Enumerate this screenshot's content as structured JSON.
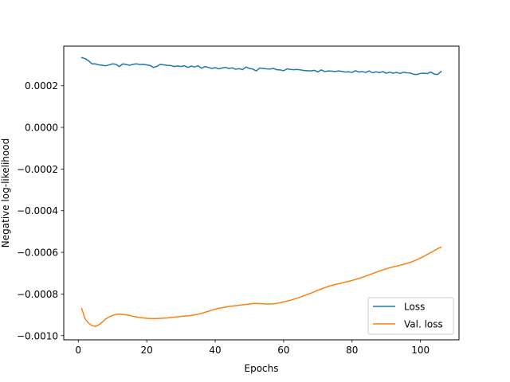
{
  "chart_data": {
    "type": "line",
    "title": "",
    "xlabel": "Epochs",
    "ylabel": "Negative log-likelihood",
    "xlim": [
      -4.25,
      111.25
    ],
    "ylim": [
      -0.00102,
      0.00039
    ],
    "xticks": [
      0,
      20,
      40,
      60,
      80,
      100
    ],
    "xtick_labels": [
      "0",
      "20",
      "40",
      "60",
      "80",
      "100"
    ],
    "yticks": [
      0.0002,
      0.0,
      -0.0002,
      -0.0004,
      -0.0006,
      -0.0008,
      -0.001
    ],
    "ytick_labels": [
      "0.0002",
      "0.0000",
      "−0.0002",
      "−0.0004",
      "−0.0006",
      "−0.0008",
      "−0.0010"
    ],
    "grid": false,
    "legend_position": "lower-right",
    "series": [
      {
        "name": "Loss",
        "color": "#1f77b4",
        "x": [
          1,
          2,
          3,
          4,
          5,
          6,
          7,
          8,
          9,
          10,
          11,
          12,
          13,
          14,
          15,
          16,
          17,
          18,
          19,
          20,
          21,
          22,
          23,
          24,
          25,
          26,
          27,
          28,
          29,
          30,
          31,
          32,
          33,
          34,
          35,
          36,
          37,
          38,
          39,
          40,
          41,
          42,
          43,
          44,
          45,
          46,
          47,
          48,
          49,
          50,
          51,
          52,
          53,
          54,
          55,
          56,
          57,
          58,
          59,
          60,
          61,
          62,
          63,
          64,
          65,
          66,
          67,
          68,
          69,
          70,
          71,
          72,
          73,
          74,
          75,
          76,
          77,
          78,
          79,
          80,
          81,
          82,
          83,
          84,
          85,
          86,
          87,
          88,
          89,
          90,
          91,
          92,
          93,
          94,
          95,
          96,
          97,
          98,
          99,
          100,
          101,
          102,
          103,
          104,
          105,
          106
        ],
        "values": [
          0.000335,
          0.00033,
          0.00032,
          0.000305,
          0.000305,
          0.0003,
          0.000298,
          0.000296,
          0.0003,
          0.000305,
          0.000303,
          0.000292,
          0.000305,
          0.000302,
          0.000298,
          0.000303,
          0.000305,
          0.000302,
          0.000303,
          0.0003,
          0.000297,
          0.000288,
          0.000293,
          0.000303,
          0.0003,
          0.000298,
          0.000297,
          0.000292,
          0.000295,
          0.000292,
          0.000296,
          0.000288,
          0.000294,
          0.00029,
          0.000296,
          0.000284,
          0.000292,
          0.000288,
          0.000283,
          0.000287,
          0.000281,
          0.000285,
          0.000288,
          0.000283,
          0.000286,
          0.000279,
          0.000282,
          0.000277,
          0.00029,
          0.000283,
          0.00028,
          0.000271,
          0.000285,
          0.000283,
          0.000281,
          0.00028,
          0.000283,
          0.000277,
          0.000276,
          0.000272,
          0.000281,
          0.000278,
          0.000277,
          0.000278,
          0.000276,
          0.000273,
          0.000272,
          0.000271,
          0.000274,
          0.000266,
          0.000276,
          0.000268,
          0.000271,
          0.00027,
          0.000268,
          0.000271,
          0.000269,
          0.000266,
          0.000267,
          0.000264,
          0.000272,
          0.000266,
          0.000268,
          0.000264,
          0.000271,
          0.000262,
          0.000267,
          0.000263,
          0.000268,
          0.00026,
          0.000265,
          0.00026,
          0.000264,
          0.000259,
          0.000265,
          0.000262,
          0.000261,
          0.000255,
          0.000254,
          0.000259,
          0.00026,
          0.000258,
          0.000266,
          0.000256,
          0.000254,
          0.000268
        ]
      },
      {
        "name": "Val. loss",
        "color": "#ff7f0e",
        "x": [
          1,
          2,
          3,
          4,
          5,
          6,
          7,
          8,
          9,
          10,
          11,
          12,
          13,
          14,
          15,
          16,
          17,
          18,
          19,
          20,
          21,
          22,
          23,
          24,
          25,
          26,
          27,
          28,
          29,
          30,
          31,
          32,
          33,
          34,
          35,
          36,
          37,
          38,
          39,
          40,
          41,
          42,
          43,
          44,
          45,
          46,
          47,
          48,
          49,
          50,
          51,
          52,
          53,
          54,
          55,
          56,
          57,
          58,
          59,
          60,
          61,
          62,
          63,
          64,
          65,
          66,
          67,
          68,
          69,
          70,
          71,
          72,
          73,
          74,
          75,
          76,
          77,
          78,
          79,
          80,
          81,
          82,
          83,
          84,
          85,
          86,
          87,
          88,
          89,
          90,
          91,
          92,
          93,
          94,
          95,
          96,
          97,
          98,
          99,
          100,
          101,
          102,
          103,
          104,
          105,
          106
        ],
        "values": [
          -0.00087,
          -0.00092,
          -0.00094,
          -0.000952,
          -0.000955,
          -0.000948,
          -0.000935,
          -0.00092,
          -0.00091,
          -0.000903,
          -0.000898,
          -0.000897,
          -0.000898,
          -0.0009,
          -0.000903,
          -0.000907,
          -0.00091,
          -0.000913,
          -0.000915,
          -0.000917,
          -0.000918,
          -0.000918,
          -0.000918,
          -0.000917,
          -0.000916,
          -0.000915,
          -0.000913,
          -0.000911,
          -0.000909,
          -0.000908,
          -0.000906,
          -0.000905,
          -0.000903,
          -0.0009,
          -0.000897,
          -0.000893,
          -0.000888,
          -0.000883,
          -0.000878,
          -0.000873,
          -0.000869,
          -0.000866,
          -0.000863,
          -0.00086,
          -0.000858,
          -0.000856,
          -0.000854,
          -0.000852,
          -0.00085,
          -0.000848,
          -0.000846,
          -0.000845,
          -0.000846,
          -0.000847,
          -0.000848,
          -0.000848,
          -0.000847,
          -0.000845,
          -0.000842,
          -0.000838,
          -0.000834,
          -0.00083,
          -0.000825,
          -0.00082,
          -0.000814,
          -0.000808,
          -0.000802,
          -0.000796,
          -0.000789,
          -0.000782,
          -0.000776,
          -0.00077,
          -0.000764,
          -0.000759,
          -0.000755,
          -0.000751,
          -0.000747,
          -0.000743,
          -0.000739,
          -0.000735,
          -0.00073,
          -0.000725,
          -0.00072,
          -0.000714,
          -0.000708,
          -0.000702,
          -0.000696,
          -0.00069,
          -0.000684,
          -0.000679,
          -0.000674,
          -0.00067,
          -0.000666,
          -0.000662,
          -0.000658,
          -0.000653,
          -0.000648,
          -0.000642,
          -0.000635,
          -0.000627,
          -0.000619,
          -0.00061,
          -0.000601,
          -0.000592,
          -0.000582,
          -0.000576
        ]
      }
    ]
  }
}
